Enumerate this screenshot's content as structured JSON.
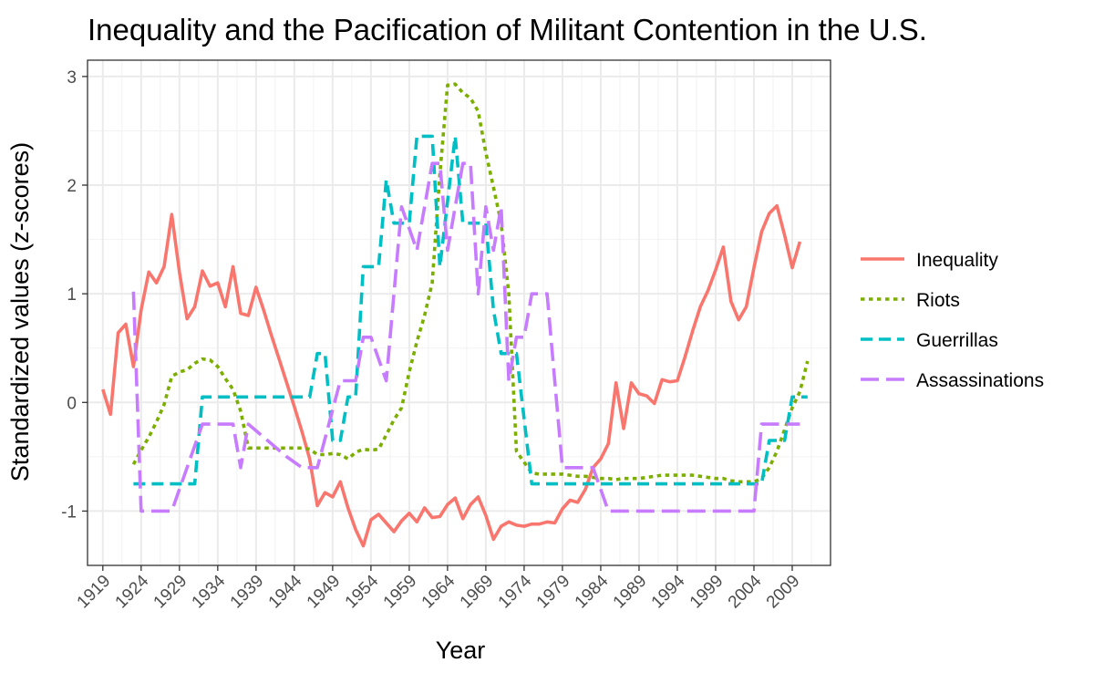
{
  "chart_data": {
    "type": "line",
    "title": "Inequality and the Pacification of Militant Contention in the U.S.",
    "xlabel": "Year",
    "ylabel": "Standardized values (z-scores)",
    "xlim": [
      1917,
      2014
    ],
    "ylim": [
      -1.5,
      3.15
    ],
    "x_ticks": [
      1919,
      1924,
      1929,
      1934,
      1939,
      1944,
      1949,
      1954,
      1959,
      1964,
      1969,
      1974,
      1979,
      1984,
      1989,
      1994,
      1999,
      2004,
      2009
    ],
    "y_ticks": [
      -1,
      0,
      1,
      2,
      3
    ],
    "grid": true,
    "legend_position": "right",
    "series": [
      {
        "name": "Inequality",
        "color": "#F8766D",
        "dash": "solid",
        "points": [
          [
            1919,
            0.12
          ],
          [
            1920,
            -0.11
          ],
          [
            1921,
            0.64
          ],
          [
            1922,
            0.72
          ],
          [
            1923,
            0.33
          ],
          [
            1924,
            0.85
          ],
          [
            1925,
            1.2
          ],
          [
            1926,
            1.1
          ],
          [
            1927,
            1.25
          ],
          [
            1928,
            1.73
          ],
          [
            1929,
            1.2
          ],
          [
            1930,
            0.77
          ],
          [
            1931,
            0.88
          ],
          [
            1932,
            1.21
          ],
          [
            1933,
            1.07
          ],
          [
            1934,
            1.1
          ],
          [
            1935,
            0.88
          ],
          [
            1936,
            1.25
          ],
          [
            1937,
            0.82
          ],
          [
            1938,
            0.8
          ],
          [
            1939,
            1.06
          ],
          [
            1940,
            0.85
          ],
          [
            1941,
            0.62
          ],
          [
            1942,
            0.4
          ],
          [
            1943,
            0.18
          ],
          [
            1944,
            -0.04
          ],
          [
            1945,
            -0.27
          ],
          [
            1946,
            -0.52
          ],
          [
            1947,
            -0.95
          ],
          [
            1948,
            -0.83
          ],
          [
            1949,
            -0.87
          ],
          [
            1950,
            -0.73
          ],
          [
            1951,
            -0.97
          ],
          [
            1952,
            -1.17
          ],
          [
            1953,
            -1.32
          ],
          [
            1954,
            -1.08
          ],
          [
            1955,
            -1.03
          ],
          [
            1956,
            -1.11
          ],
          [
            1957,
            -1.19
          ],
          [
            1958,
            -1.09
          ],
          [
            1959,
            -1.02
          ],
          [
            1960,
            -1.1
          ],
          [
            1961,
            -0.97
          ],
          [
            1962,
            -1.06
          ],
          [
            1963,
            -1.05
          ],
          [
            1964,
            -0.94
          ],
          [
            1965,
            -0.88
          ],
          [
            1966,
            -1.07
          ],
          [
            1967,
            -0.94
          ],
          [
            1968,
            -0.87
          ],
          [
            1969,
            -1.04
          ],
          [
            1970,
            -1.26
          ],
          [
            1971,
            -1.14
          ],
          [
            1972,
            -1.1
          ],
          [
            1973,
            -1.13
          ],
          [
            1974,
            -1.14
          ],
          [
            1975,
            -1.12
          ],
          [
            1976,
            -1.12
          ],
          [
            1977,
            -1.1
          ],
          [
            1978,
            -1.11
          ],
          [
            1979,
            -0.98
          ],
          [
            1980,
            -0.9
          ],
          [
            1981,
            -0.92
          ],
          [
            1982,
            -0.8
          ],
          [
            1983,
            -0.6
          ],
          [
            1984,
            -0.52
          ],
          [
            1985,
            -0.38
          ],
          [
            1986,
            0.18
          ],
          [
            1987,
            -0.24
          ],
          [
            1988,
            0.18
          ],
          [
            1989,
            0.08
          ],
          [
            1990,
            0.06
          ],
          [
            1991,
            -0.01
          ],
          [
            1992,
            0.21
          ],
          [
            1993,
            0.19
          ],
          [
            1994,
            0.2
          ],
          [
            1995,
            0.42
          ],
          [
            1996,
            0.66
          ],
          [
            1997,
            0.88
          ],
          [
            1998,
            1.03
          ],
          [
            1999,
            1.22
          ],
          [
            2000,
            1.43
          ],
          [
            2001,
            0.93
          ],
          [
            2002,
            0.76
          ],
          [
            2003,
            0.88
          ],
          [
            2004,
            1.24
          ],
          [
            2005,
            1.57
          ],
          [
            2006,
            1.74
          ],
          [
            2007,
            1.81
          ],
          [
            2008,
            1.54
          ],
          [
            2009,
            1.24
          ],
          [
            2010,
            1.48
          ]
        ]
      },
      {
        "name": "Riots",
        "color": "#7CAE00",
        "dash": "dotted",
        "points": [
          [
            1923,
            -0.57
          ],
          [
            1924,
            -0.44
          ],
          [
            1925,
            -0.32
          ],
          [
            1926,
            -0.18
          ],
          [
            1927,
            -0.02
          ],
          [
            1928,
            0.24
          ],
          [
            1929,
            0.28
          ],
          [
            1930,
            0.3
          ],
          [
            1931,
            0.36
          ],
          [
            1932,
            0.4
          ],
          [
            1933,
            0.39
          ],
          [
            1934,
            0.33
          ],
          [
            1935,
            0.22
          ],
          [
            1936,
            0.12
          ],
          [
            1937,
            -0.08
          ],
          [
            1938,
            -0.42
          ],
          [
            1939,
            -0.42
          ],
          [
            1940,
            -0.42
          ],
          [
            1941,
            -0.42
          ],
          [
            1942,
            -0.42
          ],
          [
            1943,
            -0.42
          ],
          [
            1944,
            -0.42
          ],
          [
            1945,
            -0.42
          ],
          [
            1946,
            -0.43
          ],
          [
            1947,
            -0.48
          ],
          [
            1948,
            -0.48
          ],
          [
            1949,
            -0.47
          ],
          [
            1950,
            -0.48
          ],
          [
            1951,
            -0.52
          ],
          [
            1952,
            -0.46
          ],
          [
            1953,
            -0.43
          ],
          [
            1954,
            -0.44
          ],
          [
            1955,
            -0.43
          ],
          [
            1956,
            -0.3
          ],
          [
            1957,
            -0.16
          ],
          [
            1958,
            -0.05
          ],
          [
            1959,
            0.28
          ],
          [
            1960,
            0.56
          ],
          [
            1961,
            0.8
          ],
          [
            1962,
            1.1
          ],
          [
            1963,
            2.1
          ],
          [
            1964,
            2.92
          ],
          [
            1965,
            2.93
          ],
          [
            1966,
            2.85
          ],
          [
            1967,
            2.8
          ],
          [
            1968,
            2.68
          ],
          [
            1969,
            2.3
          ],
          [
            1970,
            1.98
          ],
          [
            1971,
            1.65
          ],
          [
            1972,
            1.0
          ],
          [
            1973,
            -0.45
          ],
          [
            1974,
            -0.55
          ],
          [
            1975,
            -0.65
          ],
          [
            1976,
            -0.66
          ],
          [
            1977,
            -0.66
          ],
          [
            1978,
            -0.66
          ],
          [
            1979,
            -0.66
          ],
          [
            1980,
            -0.67
          ],
          [
            1981,
            -0.68
          ],
          [
            1982,
            -0.68
          ],
          [
            1983,
            -0.69
          ],
          [
            1984,
            -0.7
          ],
          [
            1985,
            -0.7
          ],
          [
            1986,
            -0.71
          ],
          [
            1987,
            -0.7
          ],
          [
            1988,
            -0.7
          ],
          [
            1989,
            -0.7
          ],
          [
            1990,
            -0.69
          ],
          [
            1991,
            -0.68
          ],
          [
            1992,
            -0.67
          ],
          [
            1993,
            -0.67
          ],
          [
            1994,
            -0.67
          ],
          [
            1995,
            -0.67
          ],
          [
            1996,
            -0.67
          ],
          [
            1997,
            -0.68
          ],
          [
            1998,
            -0.69
          ],
          [
            1999,
            -0.7
          ],
          [
            2000,
            -0.7
          ],
          [
            2001,
            -0.72
          ],
          [
            2002,
            -0.73
          ],
          [
            2003,
            -0.73
          ],
          [
            2004,
            -0.73
          ],
          [
            2005,
            -0.7
          ],
          [
            2006,
            -0.6
          ],
          [
            2007,
            -0.45
          ],
          [
            2008,
            -0.25
          ],
          [
            2009,
            -0.05
          ],
          [
            2010,
            0.1
          ],
          [
            2011,
            0.38
          ]
        ]
      },
      {
        "name": "Guerrillas",
        "color": "#00BFC4",
        "dash": "dashed",
        "points": [
          [
            1923,
            -0.75
          ],
          [
            1931,
            -0.75
          ],
          [
            1932,
            0.05
          ],
          [
            1946,
            0.05
          ],
          [
            1947,
            0.45
          ],
          [
            1948,
            0.45
          ],
          [
            1949,
            -0.35
          ],
          [
            1950,
            -0.35
          ],
          [
            1951,
            0.05
          ],
          [
            1952,
            0.05
          ],
          [
            1953,
            1.25
          ],
          [
            1955,
            1.25
          ],
          [
            1956,
            2.05
          ],
          [
            1957,
            1.65
          ],
          [
            1959,
            1.65
          ],
          [
            1960,
            2.45
          ],
          [
            1962,
            2.45
          ],
          [
            1963,
            1.25
          ],
          [
            1965,
            2.45
          ],
          [
            1966,
            1.65
          ],
          [
            1969,
            1.65
          ],
          [
            1970,
            0.85
          ],
          [
            1971,
            0.45
          ],
          [
            1972,
            0.45
          ],
          [
            1973,
            0.45
          ],
          [
            1975,
            -0.75
          ],
          [
            2005,
            -0.75
          ],
          [
            2006,
            -0.35
          ],
          [
            2008,
            -0.35
          ],
          [
            2009,
            0.05
          ],
          [
            2011,
            0.05
          ]
        ]
      },
      {
        "name": "Assassinations",
        "color": "#C77CFF",
        "dash": "longdash",
        "points": [
          [
            1923,
            1.02
          ],
          [
            1924,
            -1.0
          ],
          [
            1928,
            -1.0
          ],
          [
            1930,
            -0.6
          ],
          [
            1932,
            -0.2
          ],
          [
            1936,
            -0.2
          ],
          [
            1937,
            -0.6
          ],
          [
            1938,
            -0.2
          ],
          [
            1943,
            -0.5
          ],
          [
            1945,
            -0.6
          ],
          [
            1947,
            -0.6
          ],
          [
            1950,
            0.2
          ],
          [
            1952,
            0.2
          ],
          [
            1953,
            0.6
          ],
          [
            1954,
            0.6
          ],
          [
            1956,
            0.2
          ],
          [
            1957,
            1.0
          ],
          [
            1958,
            1.8
          ],
          [
            1960,
            1.4
          ],
          [
            1962,
            2.2
          ],
          [
            1963,
            2.2
          ],
          [
            1964,
            1.4
          ],
          [
            1966,
            2.2
          ],
          [
            1967,
            2.2
          ],
          [
            1968,
            1.0
          ],
          [
            1969,
            1.8
          ],
          [
            1970,
            1.4
          ],
          [
            1971,
            1.8
          ],
          [
            1972,
            0.2
          ],
          [
            1973,
            0.6
          ],
          [
            1974,
            0.6
          ],
          [
            1975,
            1.0
          ],
          [
            1977,
            1.0
          ],
          [
            1979,
            -0.6
          ],
          [
            1983,
            -0.6
          ],
          [
            1985,
            -1.0
          ],
          [
            2004,
            -1.0
          ],
          [
            2005,
            -0.2
          ],
          [
            2006,
            -0.2
          ],
          [
            2007,
            -0.2
          ],
          [
            2008,
            -0.2
          ],
          [
            2009,
            -0.2
          ],
          [
            2010,
            -0.2
          ]
        ]
      }
    ]
  }
}
